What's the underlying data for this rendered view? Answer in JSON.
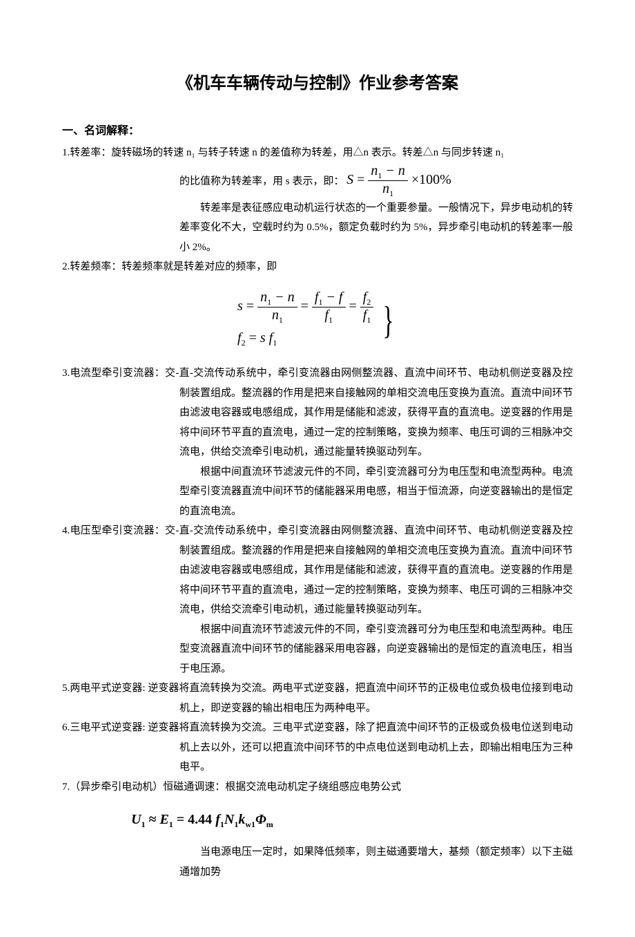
{
  "title": "《机车车辆传动与控制》作业参考答案",
  "section1": "一、名词解释：",
  "q1": {
    "lead": "1.转差率：旋转磁场的转速 n₁ 与转子转速 n 的差值称为转差，用△n 表示。转差△n 与同步转速 n₁",
    "line2_pre": "的比值称为转差率，用 s 表示，即：",
    "para": "转差率是表征感应电动机运行状态的一个重要参量。一般情况下，异步电动机的转差率变化不大，空载时约为 0.5%，额定负载时约为 5%，异步牵引电动机的转差率一般小 2%。"
  },
  "q2": {
    "lead": "2.转差频率：转差频率就是转差对应的频率，即"
  },
  "q3": {
    "lead": "3.电流型牵引变流器：交-直-交流传动系统中，牵引变流器由网侧整流器、直流中间环节、电动机侧逆变器及控制装置组成。整流器的作用是把来自接触网的单相交流电压变换为直流。直流中间环节由滤波电容器或电感组成，其作用是储能和滤波，获得平直的直流电。逆变器的作用是将中间环节平直的直流电，通过一定的控制策略，变换为频率、电压可调的三相脉冲交流电，供给交流牵引电动机，通过能量转换驱动列车。",
    "p2": "根据中间直流环节滤波元件的不同，牵引变流器可分为电压型和电流型两种。电流型牵引变流器直流中间环节的储能器采用电感，相当于恒流源，向逆变器输出的是恒定的直流电流。"
  },
  "q4": {
    "lead": "4.电压型牵引变流器：交-直-交流传动系统中，牵引变流器由网侧整流器、直流中间环节、电动机侧逆变器及控制装置组成。整流器的作用是把来自接触网的单相交流电压变换为直流。直流中间环节由滤波电容器或电感组成，其作用是储能和滤波，获得平直的直流电。逆变器的作用是将中间环节平直的直流电，通过一定的控制策略，变换为频率、电压可调的三相脉冲交流电，供给交流牵引电动机，通过能量转换驱动列车。",
    "p2": "根据中间直流环节滤波元件的不同，牵引变流器可分为电压型和电流型两种。电压型变流器直流中间环节的储能器采用电容器，向逆变器输出的是恒定的直流电压，相当于电压源。"
  },
  "q5": {
    "lead": "5.两电平式逆变器: 逆变器将直流转换为交流。两电平式逆变器，把直流中间环节的正极电位或负极电位接到电动机上，即逆变器的输出相电压为两种电平。"
  },
  "q6": {
    "lead": "6.三电平式逆变器: 逆变器将直流转换为交流。三电平式逆变器，除了把直流中间环节的正极或负极电位送到电动机上去以外，还可以把直流中间环节的中点电位送到电动机上去，即输出相电压为三种电平。"
  },
  "q7": {
    "lead": "7.（异步牵引电动机）恒磁通调速：根据交流电动机定子绕组感应电势公式",
    "tail": "当电源电压一定时，如果降低频率，则主磁通要增大，基频（额定频率）以下主磁通增加势"
  }
}
